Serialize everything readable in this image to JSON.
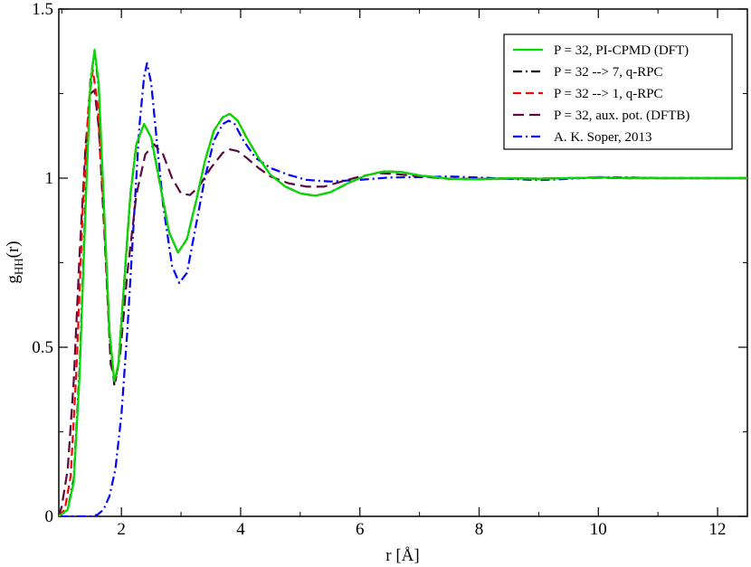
{
  "chart_data": {
    "type": "line",
    "title": "",
    "xlabel": "r [Å]",
    "ylabel": {
      "main": "g",
      "sub": "HH",
      "suffix": "(r)"
    },
    "xlim": [
      0.95,
      12.5
    ],
    "ylim": [
      0,
      1.5
    ],
    "x_ticks": [
      2,
      4,
      6,
      8,
      10,
      12
    ],
    "y_ticks": [
      0,
      0.5,
      1,
      1.5
    ],
    "x_tick_labels": [
      "2",
      "4",
      "6",
      "8",
      "10",
      "12"
    ],
    "y_tick_labels": [
      "0",
      "0.5",
      "1",
      "1.5"
    ],
    "grid": false,
    "legend_position": "top-right",
    "series": [
      {
        "name": "P = 32, PI-CPMD (DFT)",
        "color": "#00dd00",
        "dash": "solid",
        "points": [
          [
            0.95,
            0.0
          ],
          [
            1.1,
            0.02
          ],
          [
            1.2,
            0.1
          ],
          [
            1.3,
            0.42
          ],
          [
            1.4,
            0.92
          ],
          [
            1.48,
            1.28
          ],
          [
            1.55,
            1.38
          ],
          [
            1.62,
            1.28
          ],
          [
            1.7,
            0.95
          ],
          [
            1.8,
            0.55
          ],
          [
            1.88,
            0.4
          ],
          [
            1.95,
            0.45
          ],
          [
            2.05,
            0.7
          ],
          [
            2.15,
            0.95
          ],
          [
            2.25,
            1.1
          ],
          [
            2.38,
            1.16
          ],
          [
            2.5,
            1.12
          ],
          [
            2.65,
            0.98
          ],
          [
            2.8,
            0.84
          ],
          [
            2.95,
            0.78
          ],
          [
            3.1,
            0.82
          ],
          [
            3.25,
            0.93
          ],
          [
            3.4,
            1.05
          ],
          [
            3.55,
            1.14
          ],
          [
            3.7,
            1.18
          ],
          [
            3.82,
            1.19
          ],
          [
            3.95,
            1.17
          ],
          [
            4.1,
            1.12
          ],
          [
            4.3,
            1.06
          ],
          [
            4.5,
            1.01
          ],
          [
            4.75,
            0.975
          ],
          [
            5.0,
            0.955
          ],
          [
            5.25,
            0.948
          ],
          [
            5.5,
            0.958
          ],
          [
            5.8,
            0.985
          ],
          [
            6.1,
            1.008
          ],
          [
            6.4,
            1.02
          ],
          [
            6.7,
            1.018
          ],
          [
            7.0,
            1.008
          ],
          [
            7.5,
            0.998
          ],
          [
            8.0,
            0.997
          ],
          [
            8.5,
            1.0
          ],
          [
            9.0,
            0.998
          ],
          [
            9.5,
            1.0
          ],
          [
            10.0,
            1.002
          ],
          [
            10.5,
            1.0
          ],
          [
            11.0,
            1.0
          ],
          [
            12.5,
            1.0
          ]
        ]
      },
      {
        "name": "P = 32 --> 7, q-RPC",
        "color": "#000000",
        "dash": "dashdot",
        "points": [
          [
            0.95,
            0.0
          ],
          [
            1.1,
            0.02
          ],
          [
            1.2,
            0.11
          ],
          [
            1.3,
            0.44
          ],
          [
            1.4,
            0.94
          ],
          [
            1.48,
            1.29
          ],
          [
            1.55,
            1.375
          ],
          [
            1.62,
            1.27
          ],
          [
            1.7,
            0.94
          ],
          [
            1.8,
            0.54
          ],
          [
            1.88,
            0.39
          ],
          [
            1.95,
            0.45
          ],
          [
            2.05,
            0.7
          ],
          [
            2.15,
            0.95
          ],
          [
            2.25,
            1.1
          ],
          [
            2.38,
            1.16
          ],
          [
            2.5,
            1.12
          ],
          [
            2.65,
            0.98
          ],
          [
            2.8,
            0.84
          ],
          [
            2.95,
            0.78
          ],
          [
            3.1,
            0.82
          ],
          [
            3.25,
            0.93
          ],
          [
            3.4,
            1.05
          ],
          [
            3.55,
            1.14
          ],
          [
            3.7,
            1.18
          ],
          [
            3.82,
            1.19
          ],
          [
            3.95,
            1.17
          ],
          [
            4.1,
            1.12
          ],
          [
            4.3,
            1.06
          ],
          [
            4.5,
            1.01
          ],
          [
            4.75,
            0.975
          ],
          [
            5.0,
            0.955
          ],
          [
            5.25,
            0.948
          ],
          [
            5.5,
            0.958
          ],
          [
            5.8,
            0.985
          ],
          [
            6.1,
            1.008
          ],
          [
            6.4,
            1.02
          ],
          [
            6.7,
            1.018
          ],
          [
            7.0,
            1.008
          ],
          [
            7.5,
            0.998
          ],
          [
            8.0,
            0.997
          ],
          [
            8.5,
            1.0
          ],
          [
            9.0,
            0.998
          ],
          [
            9.5,
            1.0
          ],
          [
            10.0,
            1.002
          ],
          [
            10.5,
            1.0
          ],
          [
            11.0,
            1.0
          ],
          [
            12.5,
            1.0
          ]
        ]
      },
      {
        "name": "P = 32 --> 1, q-RPC",
        "color": "#ff0000",
        "dash": "dashed",
        "points": [
          [
            0.95,
            0.0
          ],
          [
            1.05,
            0.02
          ],
          [
            1.15,
            0.12
          ],
          [
            1.25,
            0.45
          ],
          [
            1.35,
            0.9
          ],
          [
            1.45,
            1.22
          ],
          [
            1.52,
            1.32
          ],
          [
            1.6,
            1.22
          ],
          [
            1.7,
            0.92
          ],
          [
            1.8,
            0.55
          ],
          [
            1.88,
            0.4
          ],
          [
            1.95,
            0.45
          ],
          [
            2.05,
            0.7
          ],
          [
            2.15,
            0.95
          ],
          [
            2.25,
            1.1
          ],
          [
            2.38,
            1.16
          ],
          [
            2.5,
            1.12
          ],
          [
            2.65,
            0.98
          ],
          [
            2.8,
            0.84
          ],
          [
            2.95,
            0.78
          ],
          [
            3.1,
            0.82
          ],
          [
            3.25,
            0.93
          ],
          [
            3.4,
            1.05
          ],
          [
            3.55,
            1.14
          ],
          [
            3.7,
            1.18
          ],
          [
            3.82,
            1.19
          ],
          [
            3.95,
            1.17
          ],
          [
            4.1,
            1.12
          ],
          [
            4.3,
            1.06
          ],
          [
            4.5,
            1.01
          ],
          [
            4.75,
            0.975
          ],
          [
            5.0,
            0.955
          ],
          [
            5.25,
            0.948
          ],
          [
            5.5,
            0.958
          ],
          [
            5.8,
            0.985
          ],
          [
            6.1,
            1.008
          ],
          [
            6.4,
            1.02
          ],
          [
            6.7,
            1.018
          ],
          [
            7.0,
            1.008
          ],
          [
            7.5,
            0.998
          ],
          [
            8.0,
            0.997
          ],
          [
            8.5,
            1.0
          ],
          [
            9.0,
            0.998
          ],
          [
            9.5,
            1.0
          ],
          [
            10.0,
            1.002
          ],
          [
            10.5,
            1.0
          ],
          [
            11.0,
            1.0
          ],
          [
            12.5,
            1.0
          ]
        ]
      },
      {
        "name": "P = 32, aux. pot. (DFTB)",
        "color": "#5a0a3c",
        "dash": "longdash",
        "points": [
          [
            0.95,
            0.0
          ],
          [
            1.0,
            0.03
          ],
          [
            1.1,
            0.14
          ],
          [
            1.2,
            0.4
          ],
          [
            1.3,
            0.78
          ],
          [
            1.4,
            1.1
          ],
          [
            1.48,
            1.25
          ],
          [
            1.55,
            1.26
          ],
          [
            1.62,
            1.15
          ],
          [
            1.72,
            0.82
          ],
          [
            1.82,
            0.45
          ],
          [
            1.9,
            0.4
          ],
          [
            1.98,
            0.48
          ],
          [
            2.1,
            0.72
          ],
          [
            2.25,
            0.95
          ],
          [
            2.4,
            1.07
          ],
          [
            2.55,
            1.1
          ],
          [
            2.7,
            1.07
          ],
          [
            2.85,
            1.0
          ],
          [
            3.0,
            0.955
          ],
          [
            3.15,
            0.95
          ],
          [
            3.3,
            0.975
          ],
          [
            3.5,
            1.03
          ],
          [
            3.7,
            1.075
          ],
          [
            3.82,
            1.085
          ],
          [
            3.95,
            1.08
          ],
          [
            4.1,
            1.06
          ],
          [
            4.3,
            1.03
          ],
          [
            4.5,
            1.005
          ],
          [
            4.8,
            0.985
          ],
          [
            5.1,
            0.975
          ],
          [
            5.4,
            0.975
          ],
          [
            5.7,
            0.99
          ],
          [
            6.0,
            1.005
          ],
          [
            6.3,
            1.015
          ],
          [
            6.6,
            1.012
          ],
          [
            7.0,
            1.005
          ],
          [
            7.5,
            0.998
          ],
          [
            8.0,
            0.998
          ],
          [
            9.0,
            0.999
          ],
          [
            10.0,
            1.001
          ],
          [
            11.0,
            1.0
          ],
          [
            12.5,
            1.0
          ]
        ]
      },
      {
        "name": "A. K. Soper, 2013",
        "color": "#0000ff",
        "dash": "dashdot",
        "points": [
          [
            0.95,
            0.0
          ],
          [
            1.5,
            0.0
          ],
          [
            1.6,
            0.005
          ],
          [
            1.7,
            0.02
          ],
          [
            1.8,
            0.06
          ],
          [
            1.9,
            0.14
          ],
          [
            2.0,
            0.3
          ],
          [
            2.1,
            0.55
          ],
          [
            2.2,
            0.85
          ],
          [
            2.3,
            1.15
          ],
          [
            2.38,
            1.3
          ],
          [
            2.43,
            1.34
          ],
          [
            2.5,
            1.28
          ],
          [
            2.6,
            1.1
          ],
          [
            2.7,
            0.92
          ],
          [
            2.85,
            0.74
          ],
          [
            2.97,
            0.69
          ],
          [
            3.1,
            0.72
          ],
          [
            3.25,
            0.86
          ],
          [
            3.4,
            1.0
          ],
          [
            3.55,
            1.11
          ],
          [
            3.7,
            1.16
          ],
          [
            3.8,
            1.17
          ],
          [
            3.9,
            1.16
          ],
          [
            4.05,
            1.11
          ],
          [
            4.25,
            1.06
          ],
          [
            4.5,
            1.03
          ],
          [
            4.8,
            1.01
          ],
          [
            5.1,
            0.995
          ],
          [
            5.5,
            0.99
          ],
          [
            6.0,
            0.995
          ],
          [
            6.5,
            1.002
          ],
          [
            7.0,
            1.003
          ],
          [
            7.5,
            1.005
          ],
          [
            8.0,
            1.002
          ],
          [
            8.5,
            0.998
          ],
          [
            9.0,
            0.994
          ],
          [
            9.5,
            0.998
          ],
          [
            10.0,
            1.003
          ],
          [
            10.5,
            1.002
          ],
          [
            11.0,
            1.0
          ],
          [
            12.5,
            1.0
          ]
        ]
      }
    ]
  }
}
